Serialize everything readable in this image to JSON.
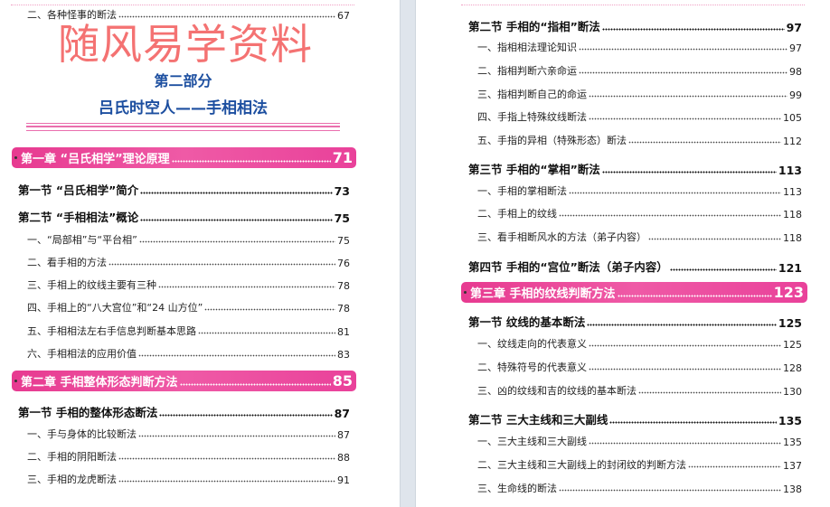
{
  "left_page": {
    "part_title": "第二部分",
    "part_subtitle": "吕氏时空人——手相相法",
    "entries": [
      {
        "type": "item",
        "label": "二、各种怪事的断法",
        "page": "67"
      },
      {
        "type": "chapter",
        "label": "第一章 “吕氏相学”理论原理",
        "page": "71"
      },
      {
        "type": "section",
        "label": "第一节 “吕氏相学”简介",
        "page": "73"
      },
      {
        "type": "section",
        "label": "第二节 “手相相法”概论",
        "page": "75"
      },
      {
        "type": "item",
        "label": "一、“局部相”与“平台相”",
        "page": "75"
      },
      {
        "type": "item",
        "label": "二、看手相的方法",
        "page": "76"
      },
      {
        "type": "item",
        "label": "三、手相上的纹线主要有三种",
        "page": "78"
      },
      {
        "type": "item",
        "label": "四、手相上的“八大宫位”和“24 山方位”",
        "page": "78"
      },
      {
        "type": "item",
        "label": "五、手相相法左右手信息判断基本思路",
        "page": "81"
      },
      {
        "type": "item",
        "label": "六、手相相法的应用价值",
        "page": "83"
      },
      {
        "type": "chapter",
        "label": "第二章 手相整体形态判断方法",
        "page": "85"
      },
      {
        "type": "section",
        "label": "第一节 手相的整体形态断法",
        "page": "87"
      },
      {
        "type": "item",
        "label": "一、手与身体的比较断法",
        "page": "87"
      },
      {
        "type": "item",
        "label": "二、手相的阴阳断法",
        "page": "88"
      },
      {
        "type": "item",
        "label": "三、手相的龙虎断法",
        "page": "91"
      }
    ]
  },
  "right_page": {
    "entries": [
      {
        "type": "section",
        "label": "第二节 手相的“指相”断法",
        "page": "97"
      },
      {
        "type": "item",
        "label": "一、指相相法理论知识",
        "page": "97"
      },
      {
        "type": "item",
        "label": "二、指相判断六亲命运",
        "page": "98"
      },
      {
        "type": "item",
        "label": "三、指相判断自己的命运",
        "page": "99"
      },
      {
        "type": "item",
        "label": "四、手指上特殊纹线断法",
        "page": "105"
      },
      {
        "type": "item",
        "label": "五、手指的异相（特殊形态）断法",
        "page": "112"
      },
      {
        "type": "section",
        "label": "第三节 手相的“掌相”断法",
        "page": "113"
      },
      {
        "type": "item",
        "label": "一、手相的掌相断法",
        "page": "113"
      },
      {
        "type": "item",
        "label": "二、手相上的纹线",
        "page": "118"
      },
      {
        "type": "item",
        "label": "三、看手相断风水的方法（弟子内容）",
        "page": "118"
      },
      {
        "type": "section",
        "label": "第四节 手相的“宫位”断法（弟子内容）",
        "page": "121"
      },
      {
        "type": "chapter",
        "label": "第三章 手相的纹线判断方法",
        "page": "123"
      },
      {
        "type": "section",
        "label": "第一节 纹线的基本断法",
        "page": "125"
      },
      {
        "type": "item",
        "label": "一、纹线走向的代表意义",
        "page": "125"
      },
      {
        "type": "item",
        "label": "二、特殊符号的代表意义",
        "page": "128"
      },
      {
        "type": "item",
        "label": "三、凶的纹线和吉的纹线的基本断法",
        "page": "130"
      },
      {
        "type": "section",
        "label": "第二节 三大主线和三大副线",
        "page": "135"
      },
      {
        "type": "item",
        "label": "一、三大主线和三大副线",
        "page": "135"
      },
      {
        "type": "item",
        "label": "二、三大主线和三大副线上的封闭纹的判断方法",
        "page": "137"
      },
      {
        "type": "item",
        "label": "三、生命线的断法",
        "page": "138"
      }
    ]
  },
  "watermark": "随风易学资料",
  "colors": {
    "chapter_bar": "#e73a90",
    "part_title": "#1d4fa0",
    "watermark": "#f03c3c",
    "gutter": "#dfe5ec"
  }
}
